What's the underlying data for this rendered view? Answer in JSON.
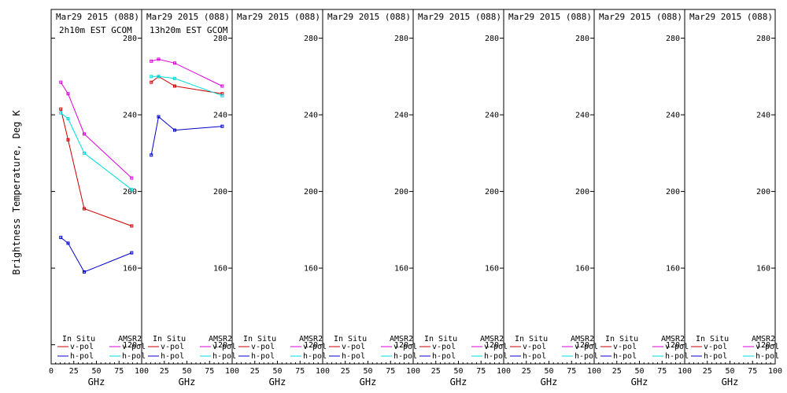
{
  "chart_data": {
    "type": "line",
    "ylabel": "Brightness Temperature, Deg K",
    "xlabel": "GHz",
    "xlim": [
      0,
      100
    ],
    "ylim": [
      110,
      295
    ],
    "yticks": [
      120,
      160,
      200,
      240,
      280
    ],
    "xticks": [
      0,
      25,
      50,
      75,
      100
    ],
    "legend": {
      "position": "bottom",
      "in_situ_header": "In Situ",
      "amsr2_header": "AMSR2",
      "entries": [
        "v-pol",
        "h-pol",
        "v-pol",
        "h-pol"
      ]
    },
    "colors": {
      "in_situ_v": "#cc0000",
      "in_situ_h": "#0000cc",
      "amsr2_v": "#dd00dd",
      "amsr2_h": "#00dddd"
    },
    "panels": [
      {
        "title": "Mar29 2015 (088)",
        "subtitle": "2h10m EST GCOM",
        "series": [
          {
            "key": "in_situ_v",
            "x": [
              10.65,
              18.7,
              36.5,
              89
            ],
            "y": [
              243,
              227,
              191,
              182
            ]
          },
          {
            "key": "in_situ_h",
            "x": [
              10.65,
              18.7,
              36.5,
              89
            ],
            "y": [
              176,
              173,
              158,
              168
            ]
          },
          {
            "key": "amsr2_v",
            "x": [
              10.65,
              18.7,
              36.5,
              89
            ],
            "y": [
              257,
              251,
              230,
              207
            ]
          },
          {
            "key": "amsr2_h",
            "x": [
              10.65,
              18.7,
              36.5,
              89
            ],
            "y": [
              241,
              238,
              220,
              201
            ]
          }
        ]
      },
      {
        "title": "Mar29 2015 (088)",
        "subtitle": "13h20m EST GCOM",
        "series": [
          {
            "key": "in_situ_v",
            "x": [
              10.65,
              18.7,
              36.5,
              89
            ],
            "y": [
              257,
              260,
              255,
              251
            ]
          },
          {
            "key": "in_situ_h",
            "x": [
              10.65,
              18.7,
              36.5,
              89
            ],
            "y": [
              219,
              239,
              232,
              234
            ]
          },
          {
            "key": "amsr2_v",
            "x": [
              10.65,
              18.7,
              36.5,
              89
            ],
            "y": [
              268,
              269,
              267,
              255
            ]
          },
          {
            "key": "amsr2_h",
            "x": [
              10.65,
              18.7,
              36.5,
              89
            ],
            "y": [
              260,
              260,
              259,
              250
            ]
          }
        ]
      },
      {
        "title": "Mar29 2015 (088)",
        "subtitle": "",
        "series": []
      },
      {
        "title": "Mar29 2015 (088)",
        "subtitle": "",
        "series": []
      },
      {
        "title": "Mar29 2015 (088)",
        "subtitle": "",
        "series": []
      },
      {
        "title": "Mar29 2015 (088)",
        "subtitle": "",
        "series": []
      },
      {
        "title": "Mar29 2015 (088)",
        "subtitle": "",
        "series": []
      },
      {
        "title": "Mar29 2015 (088)",
        "subtitle": "",
        "series": []
      }
    ]
  }
}
